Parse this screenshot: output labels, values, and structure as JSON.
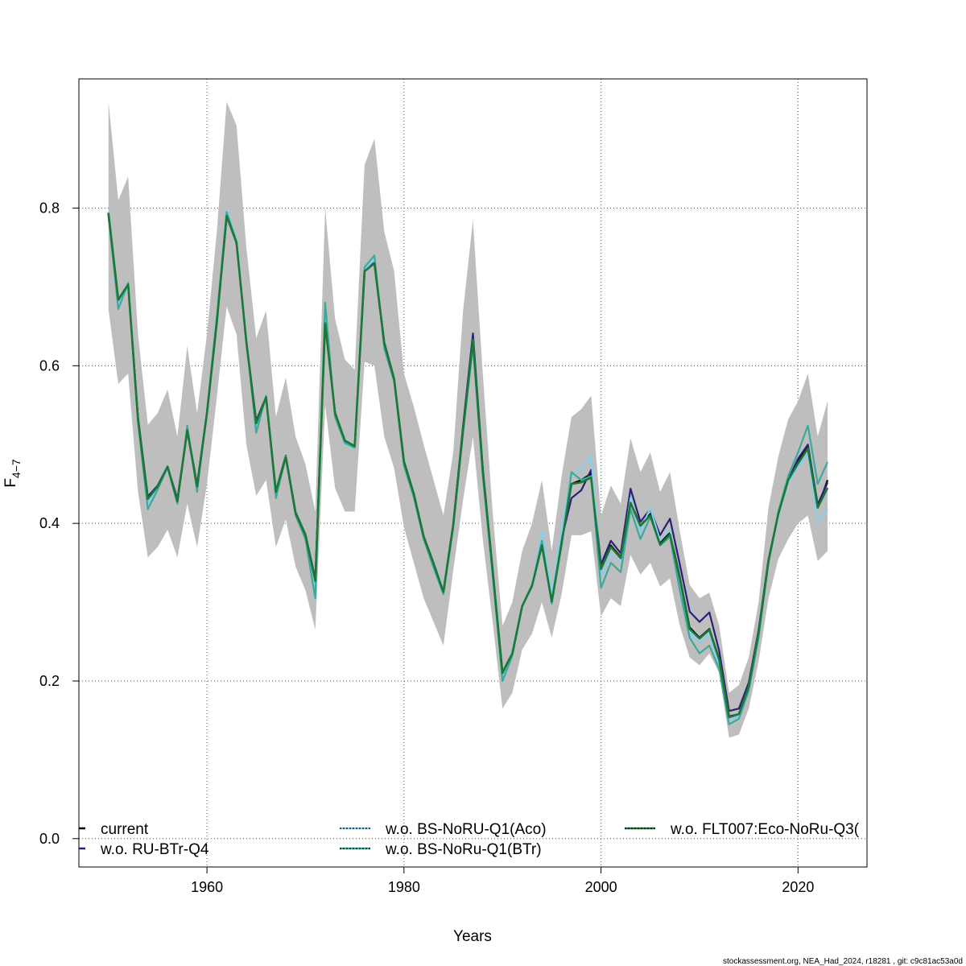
{
  "chart_data": {
    "type": "line",
    "title": "",
    "xlabel": "Years",
    "ylabel": "F",
    "ylabel_subscript": "4−7",
    "xlim": [
      1947,
      2027
    ],
    "ylim": [
      -0.036,
      0.964
    ],
    "x_ticks": [
      1960,
      1980,
      2000,
      2020
    ],
    "x_tick_labels": [
      "1960",
      "1980",
      "2000",
      "2020"
    ],
    "y_ticks": [
      0.0,
      0.2,
      0.4,
      0.6,
      0.8
    ],
    "y_tick_labels": [
      "0.0",
      "0.2",
      "0.4",
      "0.6",
      "0.8"
    ],
    "grid": true,
    "legend_position": "bottom",
    "x": [
      1950,
      1951,
      1952,
      1953,
      1954,
      1955,
      1956,
      1957,
      1958,
      1959,
      1960,
      1961,
      1962,
      1963,
      1964,
      1965,
      1966,
      1967,
      1968,
      1969,
      1970,
      1971,
      1972,
      1973,
      1974,
      1975,
      1976,
      1977,
      1978,
      1979,
      1980,
      1981,
      1982,
      1983,
      1984,
      1985,
      1986,
      1987,
      1988,
      1989,
      1990,
      1991,
      1992,
      1993,
      1994,
      1995,
      1996,
      1997,
      1998,
      1999,
      2000,
      2001,
      2002,
      2003,
      2004,
      2005,
      2006,
      2007,
      2008,
      2009,
      2010,
      2011,
      2012,
      2013,
      2014,
      2015,
      2016,
      2017,
      2018,
      2019,
      2020,
      2021,
      2022,
      2023
    ],
    "confidence_band": {
      "color": "#bebebe",
      "lower": [
        0.672,
        0.577,
        0.59,
        0.44,
        0.357,
        0.37,
        0.392,
        0.357,
        0.425,
        0.37,
        0.45,
        0.56,
        0.675,
        0.64,
        0.5,
        0.435,
        0.455,
        0.37,
        0.405,
        0.345,
        0.315,
        0.265,
        0.55,
        0.445,
        0.415,
        0.415,
        0.605,
        0.6,
        0.51,
        0.47,
        0.395,
        0.35,
        0.305,
        0.275,
        0.245,
        0.34,
        0.43,
        0.51,
        0.38,
        0.275,
        0.165,
        0.185,
        0.24,
        0.26,
        0.3,
        0.255,
        0.31,
        0.385,
        0.385,
        0.39,
        0.282,
        0.305,
        0.295,
        0.36,
        0.335,
        0.35,
        0.32,
        0.33,
        0.27,
        0.23,
        0.22,
        0.235,
        0.21,
        0.128,
        0.132,
        0.165,
        0.225,
        0.305,
        0.355,
        0.38,
        0.4,
        0.41,
        0.352,
        0.365
      ],
      "upper": [
        0.935,
        0.81,
        0.84,
        0.64,
        0.525,
        0.54,
        0.57,
        0.51,
        0.625,
        0.54,
        0.64,
        0.77,
        0.935,
        0.905,
        0.75,
        0.635,
        0.67,
        0.535,
        0.585,
        0.51,
        0.475,
        0.415,
        0.8,
        0.66,
        0.608,
        0.595,
        0.855,
        0.888,
        0.77,
        0.72,
        0.59,
        0.548,
        0.5,
        0.455,
        0.41,
        0.49,
        0.67,
        0.785,
        0.59,
        0.415,
        0.27,
        0.3,
        0.365,
        0.4,
        0.455,
        0.365,
        0.46,
        0.535,
        0.545,
        0.562,
        0.41,
        0.448,
        0.425,
        0.508,
        0.465,
        0.49,
        0.44,
        0.465,
        0.39,
        0.322,
        0.305,
        0.312,
        0.27,
        0.185,
        0.195,
        0.23,
        0.3,
        0.42,
        0.485,
        0.532,
        0.555,
        0.59,
        0.51,
        0.555
      ]
    },
    "series": [
      {
        "name": "current",
        "color": "#000000",
        "dash": "",
        "values": [
          0.792,
          0.684,
          0.702,
          0.533,
          0.432,
          0.447,
          0.472,
          0.429,
          0.518,
          0.448,
          0.54,
          0.655,
          0.79,
          0.757,
          0.63,
          0.528,
          0.56,
          0.44,
          0.485,
          0.413,
          0.385,
          0.328,
          0.655,
          0.54,
          0.505,
          0.498,
          0.72,
          0.73,
          0.628,
          0.583,
          0.478,
          0.437,
          0.383,
          0.349,
          0.313,
          0.398,
          0.52,
          0.635,
          0.468,
          0.34,
          0.21,
          0.235,
          0.295,
          0.321,
          0.372,
          0.301,
          0.375,
          0.45,
          0.455,
          0.463,
          0.342,
          0.372,
          0.357,
          0.428,
          0.397,
          0.412,
          0.375,
          0.388,
          0.332,
          0.268,
          0.255,
          0.266,
          0.228,
          0.155,
          0.158,
          0.193,
          0.263,
          0.352,
          0.412,
          0.454,
          0.478,
          0.498,
          0.42,
          0.455
        ]
      },
      {
        "name": "w.o. RU-BTr-Q4",
        "color": "#2d1e78",
        "dash": "",
        "values": [
          0.793,
          0.683,
          0.703,
          0.535,
          0.434,
          0.448,
          0.473,
          0.431,
          0.519,
          0.449,
          0.541,
          0.656,
          0.791,
          0.758,
          0.631,
          0.53,
          0.561,
          0.441,
          0.486,
          0.414,
          0.386,
          0.33,
          0.656,
          0.541,
          0.505,
          0.497,
          0.721,
          0.731,
          0.63,
          0.584,
          0.479,
          0.438,
          0.384,
          0.35,
          0.313,
          0.399,
          0.524,
          0.641,
          0.47,
          0.342,
          0.211,
          0.236,
          0.296,
          0.322,
          0.375,
          0.303,
          0.38,
          0.432,
          0.442,
          0.468,
          0.348,
          0.378,
          0.362,
          0.444,
          0.402,
          0.418,
          0.385,
          0.406,
          0.348,
          0.288,
          0.275,
          0.287,
          0.238,
          0.162,
          0.165,
          0.198,
          0.265,
          0.354,
          0.413,
          0.455,
          0.482,
          0.5,
          0.424,
          0.452
        ]
      },
      {
        "name": "w.o. BS-NoRU-Q1(Aco)",
        "color": "#87ceeb",
        "dash": "",
        "values": [
          0.795,
          0.678,
          0.7,
          0.53,
          0.425,
          0.445,
          0.474,
          0.428,
          0.52,
          0.442,
          0.543,
          0.66,
          0.798,
          0.76,
          0.633,
          0.52,
          0.563,
          0.438,
          0.485,
          0.412,
          0.384,
          0.318,
          0.665,
          0.538,
          0.5,
          0.495,
          0.722,
          0.735,
          0.625,
          0.582,
          0.475,
          0.435,
          0.381,
          0.346,
          0.311,
          0.396,
          0.518,
          0.628,
          0.462,
          0.33,
          0.206,
          0.238,
          0.297,
          0.322,
          0.39,
          0.31,
          0.392,
          0.462,
          0.47,
          0.485,
          0.334,
          0.362,
          0.35,
          0.432,
          0.39,
          0.42,
          0.378,
          0.392,
          0.322,
          0.262,
          0.248,
          0.26,
          0.22,
          0.15,
          0.155,
          0.19,
          0.26,
          0.35,
          0.41,
          0.452,
          0.472,
          0.488,
          0.402,
          0.418
        ]
      },
      {
        "name": "w.o. BS-NoRu-Q1(BTr)",
        "color": "#3ba99c",
        "dash": "",
        "values": [
          0.79,
          0.672,
          0.705,
          0.528,
          0.418,
          0.443,
          0.471,
          0.425,
          0.524,
          0.44,
          0.542,
          0.662,
          0.795,
          0.758,
          0.632,
          0.515,
          0.562,
          0.432,
          0.484,
          0.41,
          0.38,
          0.305,
          0.68,
          0.535,
          0.502,
          0.496,
          0.725,
          0.74,
          0.622,
          0.58,
          0.473,
          0.433,
          0.38,
          0.344,
          0.31,
          0.394,
          0.515,
          0.625,
          0.46,
          0.335,
          0.2,
          0.232,
          0.295,
          0.32,
          0.378,
          0.298,
          0.372,
          0.465,
          0.455,
          0.46,
          0.318,
          0.35,
          0.338,
          0.418,
          0.38,
          0.408,
          0.372,
          0.383,
          0.315,
          0.255,
          0.235,
          0.245,
          0.215,
          0.145,
          0.152,
          0.188,
          0.255,
          0.35,
          0.415,
          0.46,
          0.49,
          0.524,
          0.45,
          0.478
        ]
      },
      {
        "name": "w.o. FLT007:Eco-NoRu-Q3(",
        "color": "#1b7837",
        "dash": "",
        "values": [
          0.794,
          0.684,
          0.703,
          0.532,
          0.431,
          0.447,
          0.472,
          0.428,
          0.518,
          0.447,
          0.54,
          0.655,
          0.79,
          0.756,
          0.63,
          0.527,
          0.56,
          0.44,
          0.484,
          0.413,
          0.385,
          0.327,
          0.654,
          0.54,
          0.505,
          0.498,
          0.72,
          0.73,
          0.628,
          0.583,
          0.478,
          0.437,
          0.383,
          0.349,
          0.313,
          0.398,
          0.519,
          0.633,
          0.467,
          0.34,
          0.21,
          0.235,
          0.295,
          0.321,
          0.372,
          0.301,
          0.375,
          0.45,
          0.452,
          0.458,
          0.342,
          0.37,
          0.356,
          0.426,
          0.397,
          0.41,
          0.373,
          0.386,
          0.33,
          0.266,
          0.254,
          0.265,
          0.227,
          0.154,
          0.158,
          0.193,
          0.262,
          0.352,
          0.412,
          0.455,
          0.476,
          0.495,
          0.42,
          0.445
        ]
      }
    ],
    "legend": [
      {
        "label": "current",
        "color": "#000000",
        "style": "solid"
      },
      {
        "label": "w.o. RU-BTr-Q4",
        "color": "#2d1e78",
        "style": "solid"
      },
      {
        "label": "w.o. BS-NoRU-Q1(Aco)",
        "color": "#87ceeb",
        "style": "dotted"
      },
      {
        "label": "w.o. BS-NoRu-Q1(BTr)",
        "color": "#3ba99c",
        "style": "dotted"
      },
      {
        "label": "w.o. FLT007:Eco-NoRu-Q3(",
        "color": "#1b7837",
        "style": "dotted"
      }
    ]
  },
  "footer": "stockassessment.org, NEA_Had_2024, r18281 , git: c9c81ac53a0d"
}
